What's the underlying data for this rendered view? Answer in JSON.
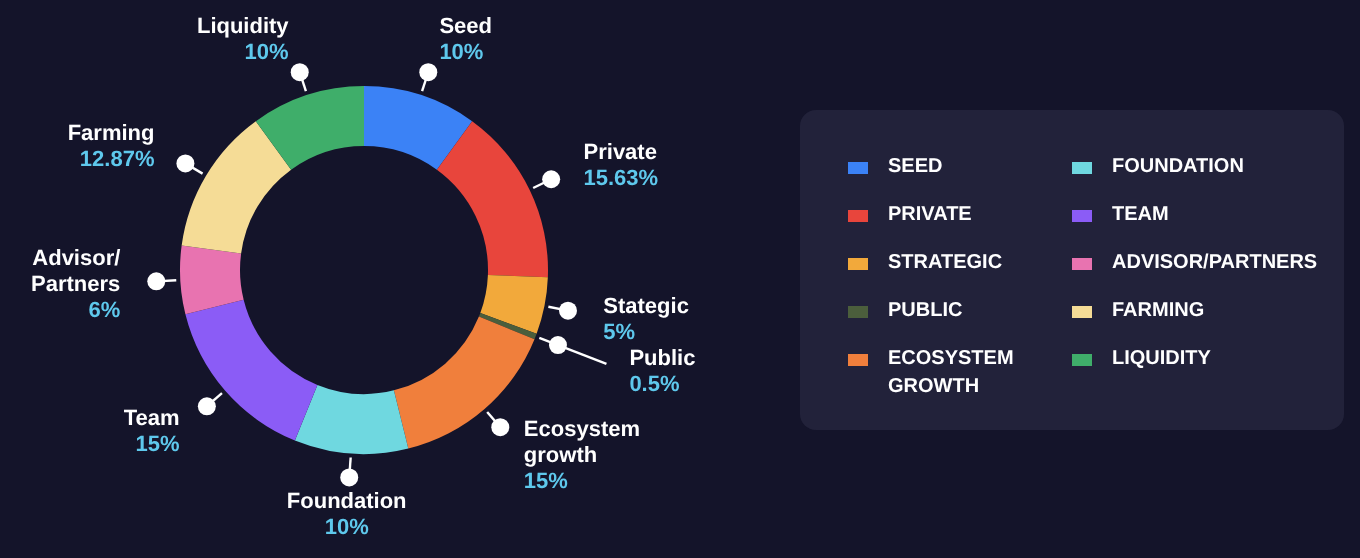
{
  "chart_data": {
    "type": "donut",
    "categories": [
      "SEED",
      "PRIVATE",
      "STRATEGIC",
      "PUBLIC",
      "ECOSYSTEM GROWTH",
      "FOUNDATION",
      "TEAM",
      "ADVISOR/PARTNERS",
      "FARMING",
      "LIQUIDITY"
    ],
    "values": [
      10,
      15.63,
      5,
      0.5,
      15,
      10,
      15,
      6,
      12.87,
      10
    ],
    "value_labels": [
      "10%",
      "15.63%",
      "5%",
      "0.5%",
      "15%",
      "10%",
      "15%",
      "6%",
      "12.87%",
      "10%"
    ],
    "colors": [
      "#3b82f6",
      "#e8453c",
      "#f2a93b",
      "#4b5e3c",
      "#f07f3c",
      "#6fd8e0",
      "#8b5cf6",
      "#e873b0",
      "#f5dc96",
      "#3fae6a"
    ],
    "annotations": [
      {
        "text": "Seed",
        "x": "SEED"
      },
      {
        "text": "Private",
        "x": "PRIVATE"
      },
      {
        "text": "Stategic",
        "x": "STRATEGIC"
      },
      {
        "text": "Public",
        "x": "PUBLIC"
      },
      {
        "text": "Ecosystem growth",
        "x": "ECOSYSTEM GROWTH"
      },
      {
        "text": "Foundation",
        "x": "FOUNDATION"
      },
      {
        "text": "Team",
        "x": "TEAM"
      },
      {
        "text": "Advisor/ Partners",
        "x": "ADVISOR/PARTNERS"
      },
      {
        "text": "Farming",
        "x": "FARMING"
      },
      {
        "text": "Liquidity",
        "x": "LIQUIDITY"
      }
    ],
    "legend": "right"
  }
}
